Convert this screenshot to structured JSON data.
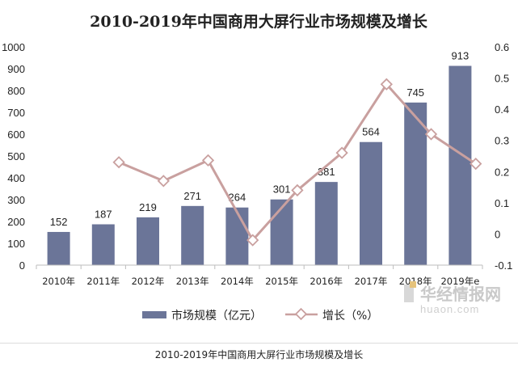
{
  "chart_data": {
    "type": "bar+line",
    "title": "2010-2019年中国商用大屏行业市场规模及增长",
    "categories": [
      "2010年",
      "2011年",
      "2012年",
      "2013年",
      "2014年",
      "2015年",
      "2016年",
      "2017年",
      "2018年",
      "2019年e"
    ],
    "series": [
      {
        "name": "市场规模（亿元）",
        "type": "bar",
        "axis": "left",
        "color": "#6b7598",
        "values": [
          152,
          187,
          219,
          271,
          264,
          301,
          381,
          564,
          745,
          913
        ]
      },
      {
        "name": "增长（%）",
        "type": "line",
        "axis": "right",
        "color": "#c9a09f",
        "values": [
          null,
          0.23,
          0.17,
          0.236,
          -0.02,
          0.14,
          0.26,
          0.48,
          0.32,
          0.225
        ]
      }
    ],
    "ylim_left": [
      0,
      1000
    ],
    "yticks_left": [
      "0",
      "100",
      "200",
      "300",
      "400",
      "500",
      "600",
      "700",
      "800",
      "900",
      "1000"
    ],
    "ylim_right": [
      -0.1,
      0.6
    ],
    "yticks_right": [
      "-0.1",
      "0",
      "0.1",
      "0.2",
      "0.3",
      "0.4",
      "0.5",
      "0.6"
    ],
    "grid": false,
    "legend": "bottom"
  },
  "watermark": {
    "cn": "华经情报网",
    "en": "huaon.com"
  },
  "caption": "2010-2019年中国商用大屏行业市场规模及增长"
}
